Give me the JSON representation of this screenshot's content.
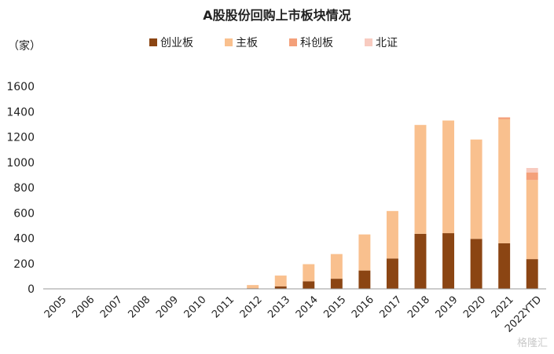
{
  "chart_data": {
    "type": "bar",
    "stacked": true,
    "title": "A股股份回购上市板块情况",
    "ylabel": "（家）",
    "xlabel": "",
    "ylim": [
      0,
      1600
    ],
    "yticks": [
      0,
      200,
      400,
      600,
      800,
      1000,
      1200,
      1400,
      1600
    ],
    "grid": false,
    "legend_position": "top",
    "categories": [
      "2005",
      "2006",
      "2007",
      "2008",
      "2009",
      "2010",
      "2011",
      "2012",
      "2013",
      "2014",
      "2015",
      "2016",
      "2017",
      "2018",
      "2019",
      "2020",
      "2021",
      "2022YTD"
    ],
    "series": [
      {
        "name": "创业板",
        "color": "#8B4513",
        "values": [
          0,
          0,
          0,
          0,
          0,
          0,
          0,
          5,
          20,
          60,
          80,
          145,
          240,
          435,
          440,
          395,
          360,
          235
        ]
      },
      {
        "name": "主板",
        "color": "#F9C08E",
        "values": [
          0,
          0,
          0,
          0,
          0,
          0,
          0,
          25,
          85,
          135,
          195,
          285,
          375,
          860,
          890,
          785,
          980,
          625
        ]
      },
      {
        "name": "科创板",
        "color": "#F4A07A",
        "values": [
          0,
          0,
          0,
          0,
          0,
          0,
          0,
          0,
          0,
          0,
          0,
          0,
          0,
          0,
          0,
          0,
          15,
          60
        ]
      },
      {
        "name": "北证",
        "color": "#F8CBC0",
        "values": [
          0,
          0,
          0,
          0,
          0,
          0,
          0,
          0,
          0,
          0,
          0,
          0,
          0,
          0,
          0,
          0,
          0,
          35
        ]
      }
    ]
  },
  "watermark": "格隆汇"
}
